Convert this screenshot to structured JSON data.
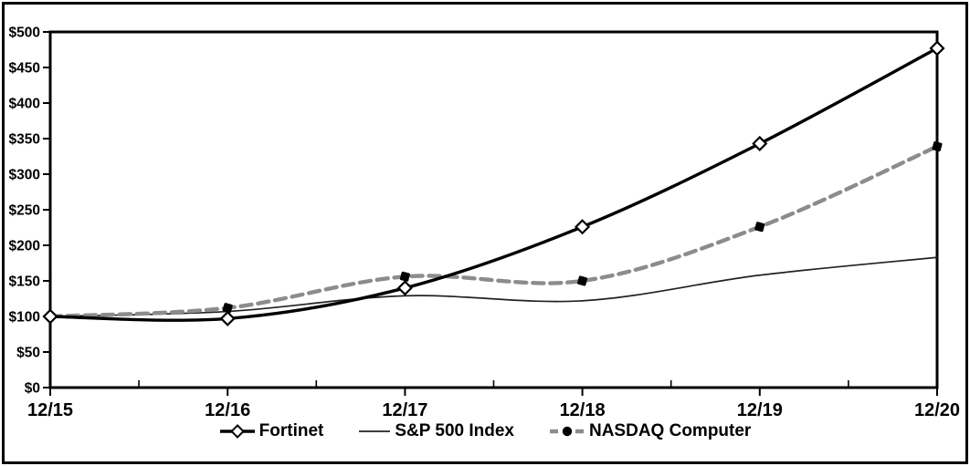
{
  "chart_data": {
    "type": "line",
    "title": "",
    "x_labels": [
      "12/15",
      "12/16",
      "12/17",
      "12/18",
      "12/19",
      "12/20"
    ],
    "y_tick_labels": [
      "$0",
      "$50",
      "$100",
      "$150",
      "$200",
      "$250",
      "$300",
      "$350",
      "$400",
      "$450",
      "$500"
    ],
    "y_tick_values": [
      0,
      50,
      100,
      150,
      200,
      250,
      300,
      350,
      400,
      450,
      500
    ],
    "ylim": [
      0,
      500
    ],
    "grid": false,
    "legend_position": "bottom",
    "axis_color": "#000000",
    "background_color": "#ffffff",
    "series": [
      {
        "name": "Fortinet",
        "values": [
          100,
          97,
          140,
          226,
          343,
          477
        ],
        "color": "#000000",
        "line_width": 3.4,
        "dash": "",
        "marker": "open-diamond",
        "marker_color": "#ffffff"
      },
      {
        "name": "S&P 500 Index",
        "values": [
          100,
          107,
          129,
          122,
          158,
          183
        ],
        "color": "#222222",
        "line_width": 1.7,
        "dash": "",
        "marker": "none",
        "marker_color": "#000000"
      },
      {
        "name": "NASDAQ Computer",
        "values": [
          100,
          112,
          156,
          150,
          226,
          339
        ],
        "color": "#8c8c8c",
        "line_width": 4.4,
        "dash": "12 7",
        "marker": "filled-square",
        "marker_color": "#000000"
      }
    ]
  }
}
